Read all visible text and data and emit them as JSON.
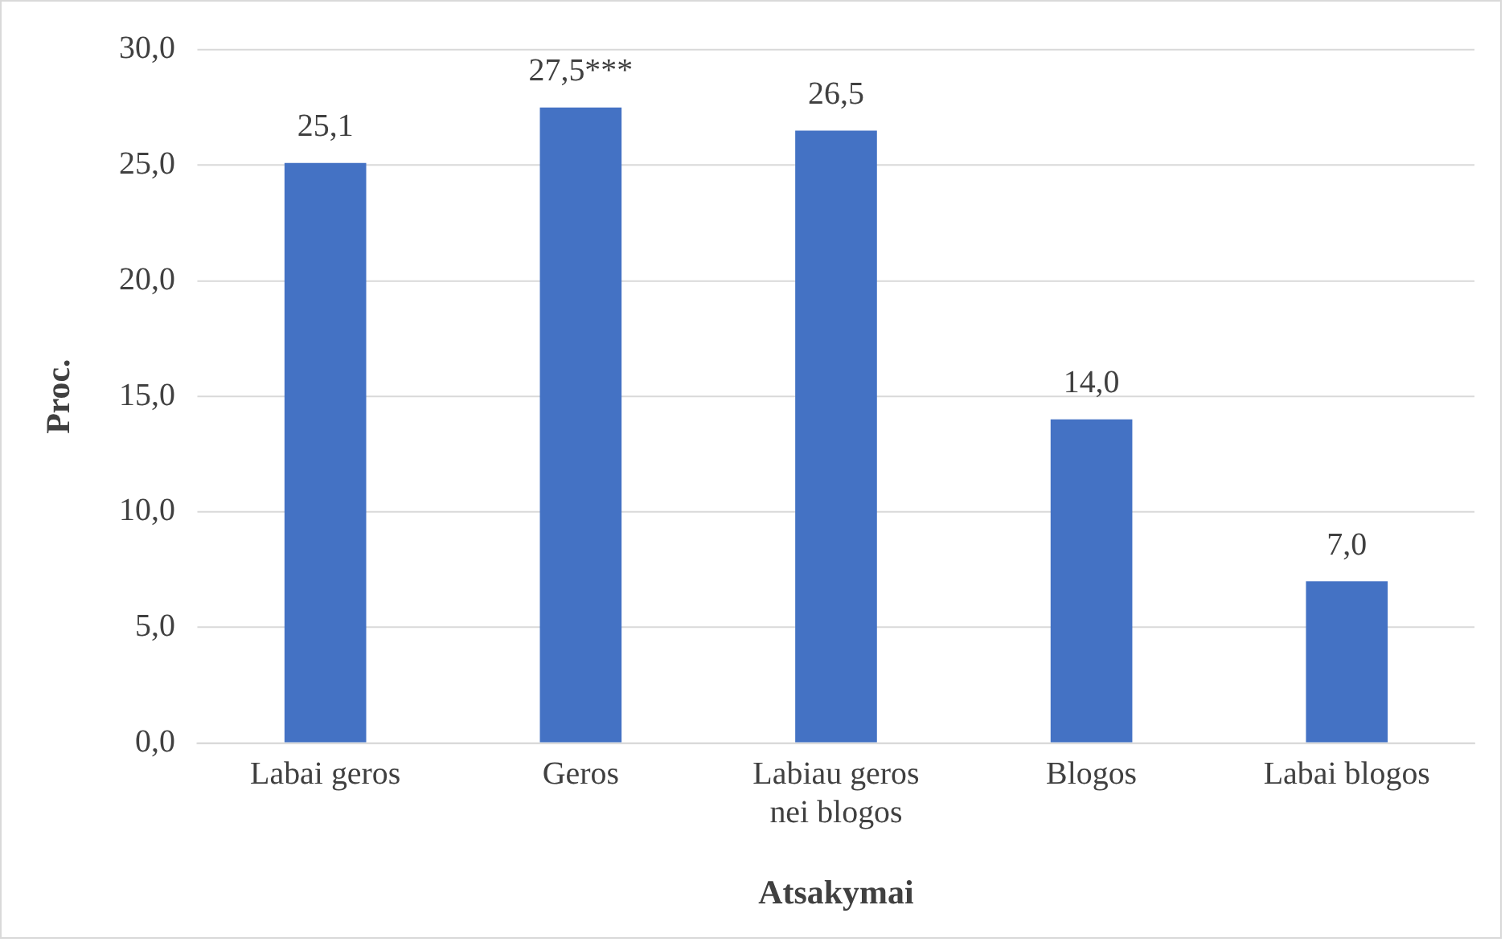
{
  "chart_data": {
    "type": "bar",
    "xlabel": "Atsakymai",
    "ylabel": "Proc.",
    "categories": [
      "Labai geros",
      "Geros",
      "Labiau geros nei blogos",
      "Blogos",
      "Labai blogos"
    ],
    "values": [
      25.1,
      27.5,
      26.5,
      14.0,
      7.0
    ],
    "value_labels": [
      "25,1",
      "27,5***",
      "26,5",
      "14,0",
      "7,0"
    ],
    "color": "#4472c4",
    "ylim": [
      0,
      30
    ],
    "yticks": [
      {
        "value": 0,
        "label": "0,0"
      },
      {
        "value": 5,
        "label": "5,0"
      },
      {
        "value": 10,
        "label": "10,0"
      },
      {
        "value": 15,
        "label": "15,0"
      },
      {
        "value": 20,
        "label": "20,0"
      },
      {
        "value": 25,
        "label": "25,0"
      },
      {
        "value": 30,
        "label": "30,0"
      }
    ],
    "grid": "y"
  }
}
